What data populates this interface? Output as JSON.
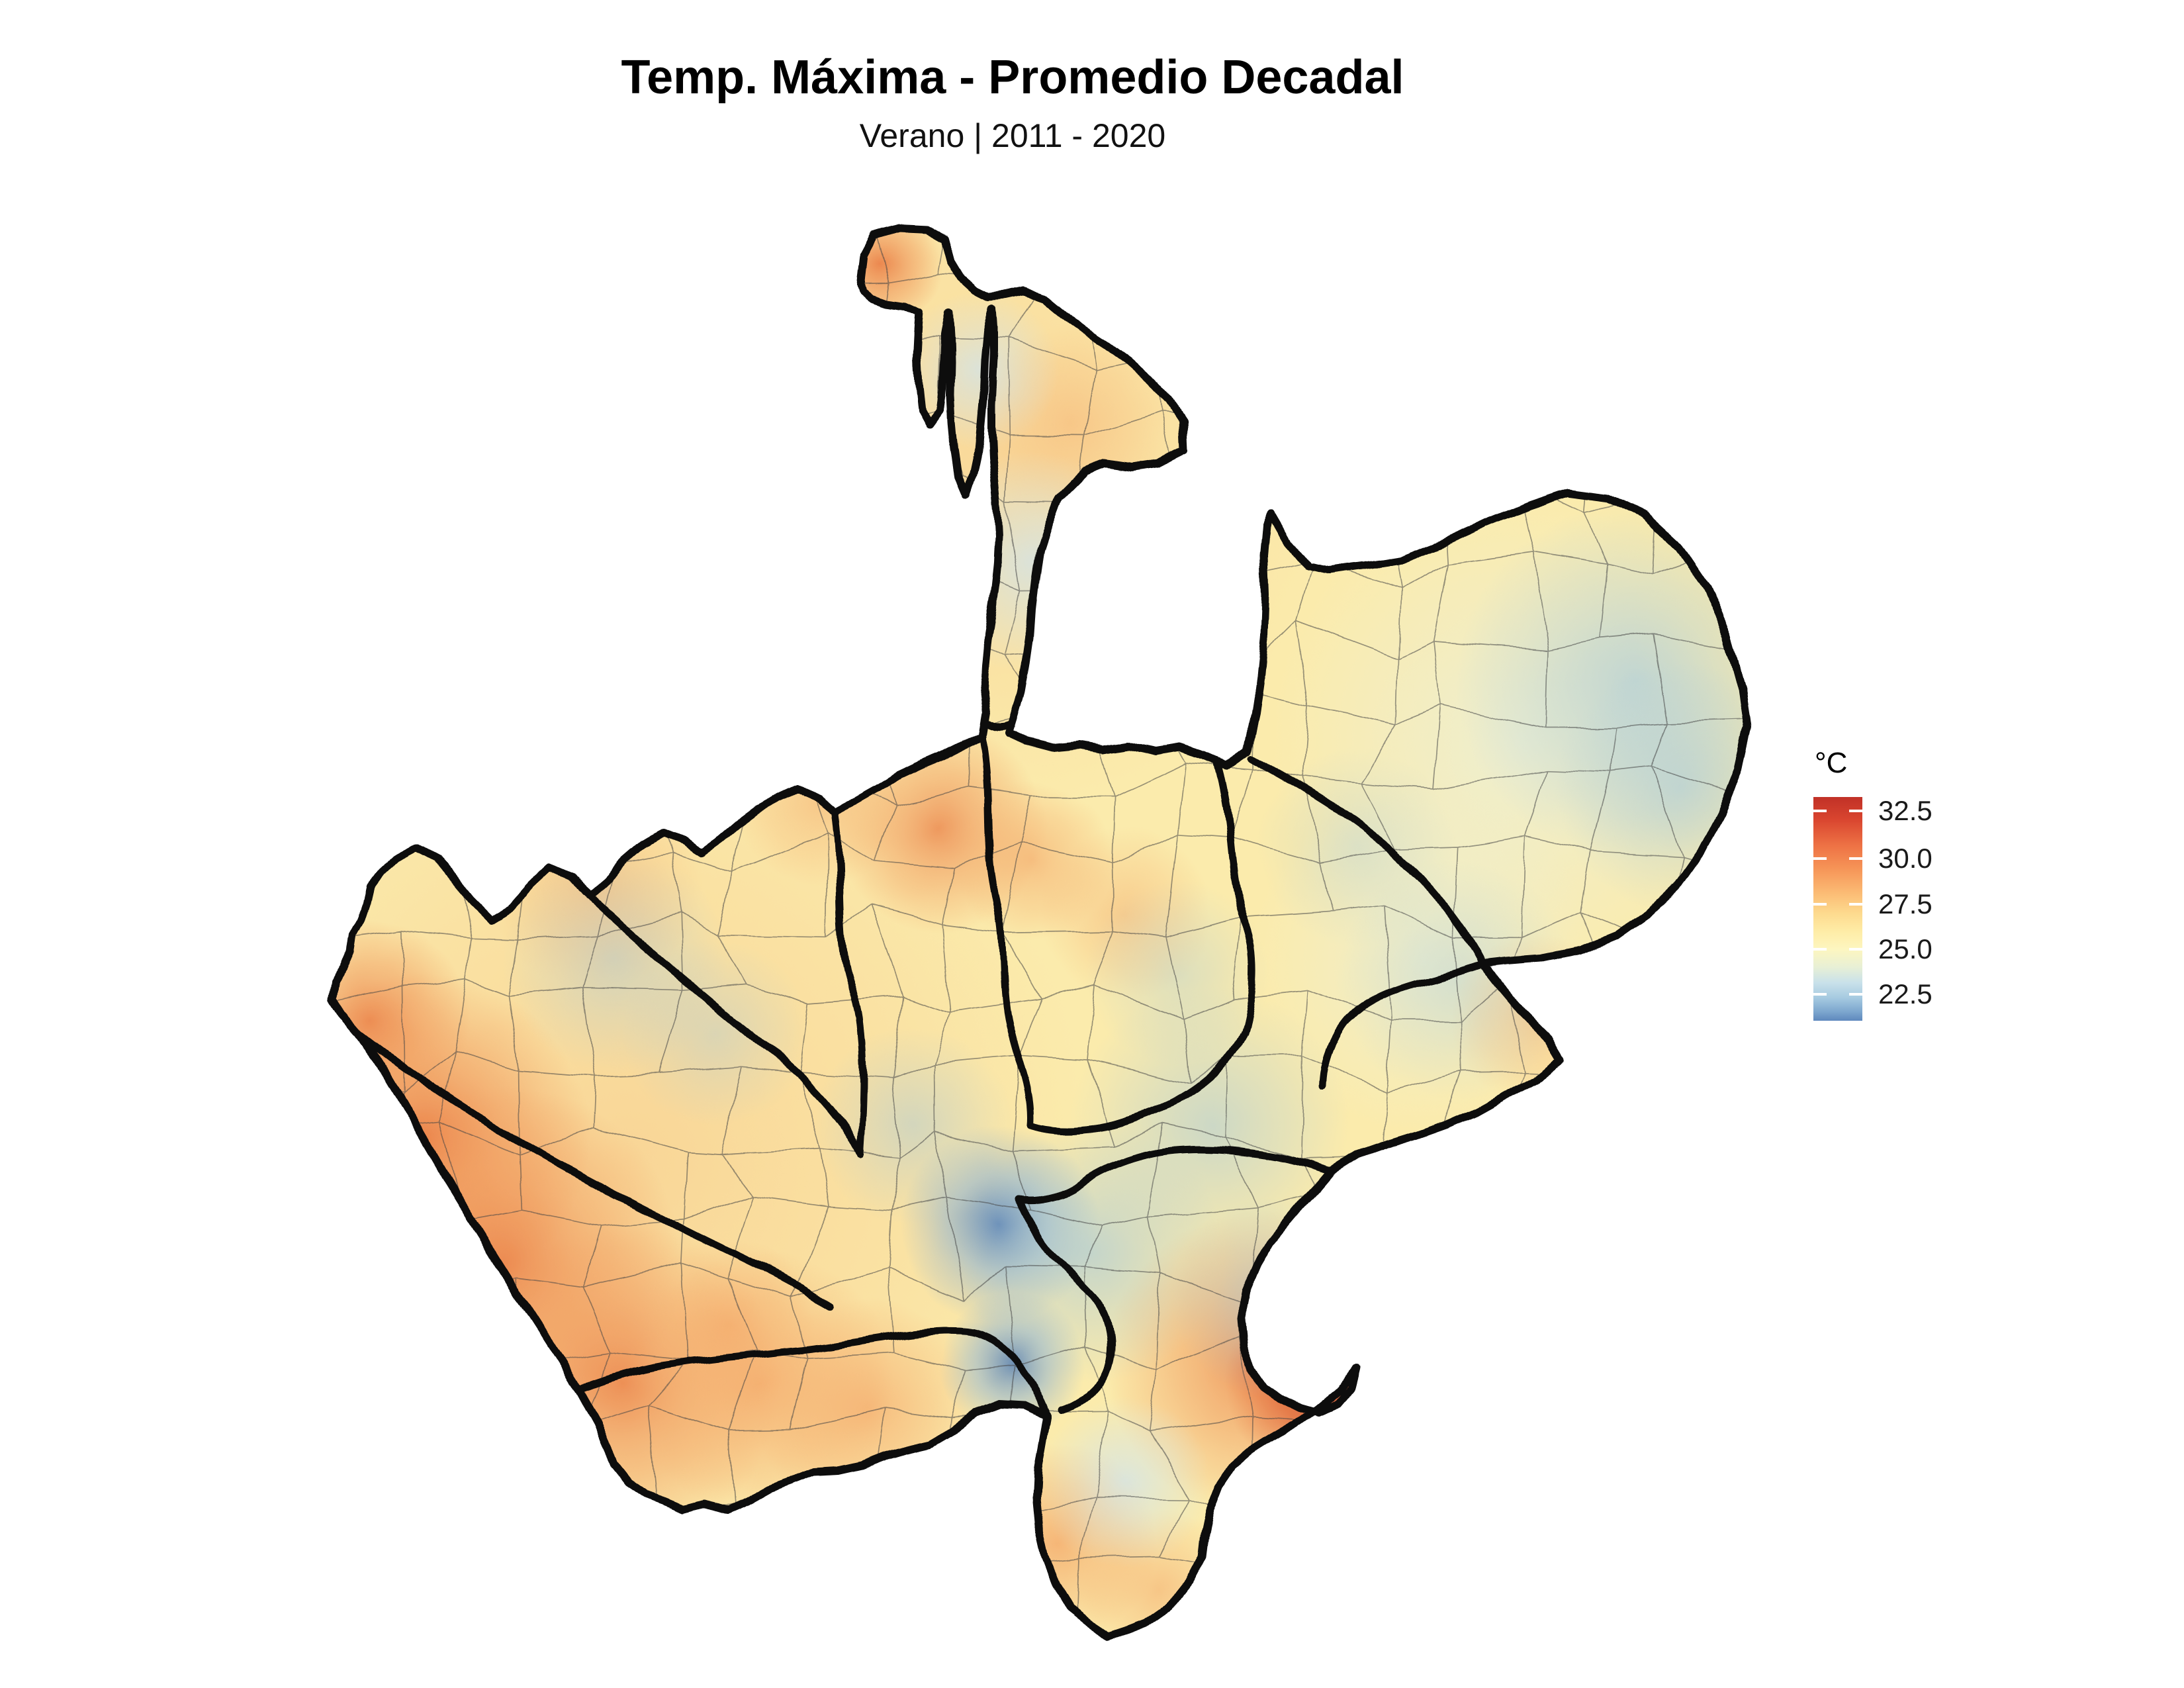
{
  "header": {
    "title": "Temp. Máxima - Promedio Decadal",
    "subtitle": "Verano | 2011 - 2020"
  },
  "legend": {
    "title": "°C",
    "ticks": [
      {
        "label": "32.5",
        "pos_pct": 6.2
      },
      {
        "label": "30.0",
        "pos_pct": 27.6
      },
      {
        "label": "27.5",
        "pos_pct": 47.8
      },
      {
        "label": "25.0",
        "pos_pct": 68.0
      },
      {
        "label": "22.5",
        "pos_pct": 88.1
      }
    ],
    "gradient_stops": [
      {
        "pct": 0,
        "color": "#C13127"
      },
      {
        "pct": 10,
        "color": "#D9452F"
      },
      {
        "pct": 22,
        "color": "#EE7345"
      },
      {
        "pct": 32,
        "color": "#F69457"
      },
      {
        "pct": 42,
        "color": "#FBB872"
      },
      {
        "pct": 52,
        "color": "#FDDA8E"
      },
      {
        "pct": 60,
        "color": "#FEECA6"
      },
      {
        "pct": 68,
        "color": "#FDF6C0"
      },
      {
        "pct": 76,
        "color": "#E8F0D5"
      },
      {
        "pct": 83,
        "color": "#C9E1EA"
      },
      {
        "pct": 90,
        "color": "#A5C9E0"
      },
      {
        "pct": 96,
        "color": "#7CA6CE"
      },
      {
        "pct": 100,
        "color": "#5E88BD"
      }
    ]
  },
  "chart_data": {
    "type": "heatmap",
    "title": "Temp. Máxima - Promedio Decadal",
    "subtitle": "Verano | 2011 - 2020",
    "unit": "°C",
    "scale_ticks": [
      32.5,
      30.0,
      27.5,
      25.0,
      22.5
    ],
    "scale_hot_color": "#C13127",
    "scale_cold_color": "#5E88BD",
    "legend_position": "right"
  },
  "map_colors": {
    "base_fill": "#FBEBAC",
    "state_border": "#0a0a0a",
    "municipal_border": "#454545"
  }
}
